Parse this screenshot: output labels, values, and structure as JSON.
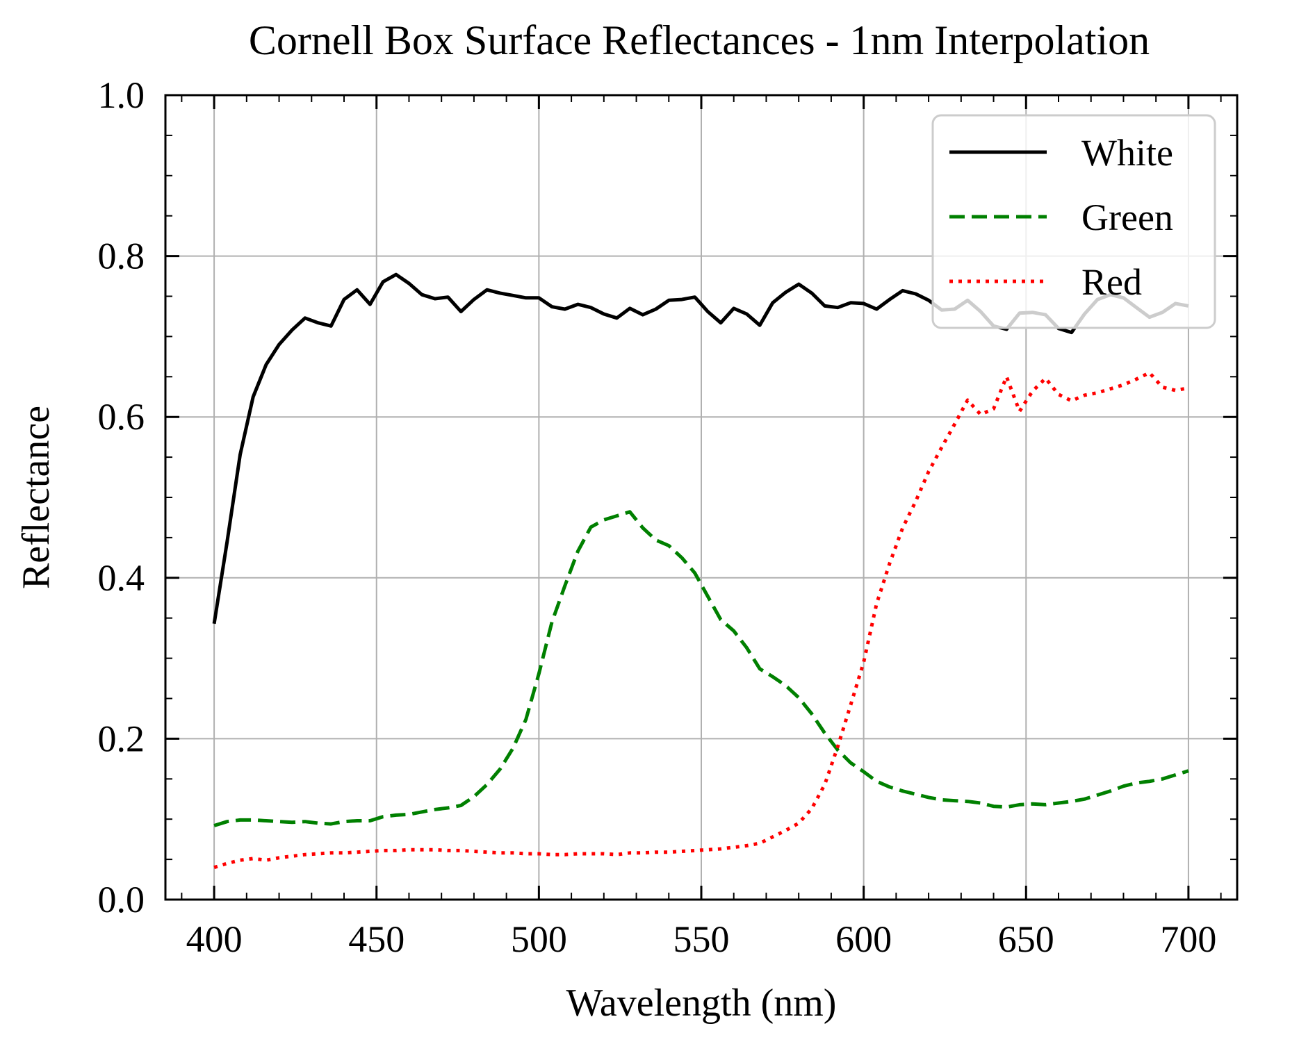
{
  "chart_data": {
    "type": "line",
    "title": "Cornell Box Surface Reflectances - 1nm Interpolation",
    "xlabel": "Wavelength (nm)",
    "ylabel": "Reflectance",
    "xlim": [
      385,
      715
    ],
    "ylim": [
      0.0,
      1.0
    ],
    "xticks": [
      400,
      450,
      500,
      550,
      600,
      650,
      700
    ],
    "xtick_labels": [
      "400",
      "450",
      "500",
      "550",
      "600",
      "650",
      "700"
    ],
    "yticks": [
      0.0,
      0.2,
      0.4,
      0.6,
      0.8,
      1.0
    ],
    "ytick_labels": [
      "0.0",
      "0.2",
      "0.4",
      "0.6",
      "0.8",
      "1.0"
    ],
    "grid": true,
    "legend_position": "top-right",
    "series": [
      {
        "name": "White",
        "color": "#000000",
        "style": "solid",
        "x": [
          400,
          404,
          408,
          412,
          416,
          420,
          424,
          428,
          432,
          436,
          440,
          444,
          448,
          452,
          456,
          460,
          464,
          468,
          472,
          476,
          480,
          484,
          488,
          492,
          496,
          500,
          504,
          508,
          512,
          516,
          520,
          524,
          528,
          532,
          536,
          540,
          544,
          548,
          552,
          556,
          560,
          564,
          568,
          572,
          576,
          580,
          584,
          588,
          592,
          596,
          600,
          604,
          608,
          612,
          616,
          620,
          624,
          628,
          632,
          636,
          640,
          644,
          648,
          652,
          656,
          660,
          664,
          668,
          672,
          676,
          680,
          684,
          688,
          692,
          696,
          700
        ],
        "y": [
          0.343,
          0.445,
          0.553,
          0.625,
          0.665,
          0.69,
          0.708,
          0.723,
          0.717,
          0.713,
          0.746,
          0.758,
          0.74,
          0.768,
          0.777,
          0.766,
          0.752,
          0.747,
          0.749,
          0.731,
          0.746,
          0.758,
          0.754,
          0.751,
          0.748,
          0.748,
          0.737,
          0.734,
          0.74,
          0.736,
          0.728,
          0.723,
          0.735,
          0.727,
          0.734,
          0.745,
          0.746,
          0.749,
          0.731,
          0.717,
          0.735,
          0.728,
          0.714,
          0.742,
          0.755,
          0.765,
          0.754,
          0.738,
          0.736,
          0.742,
          0.741,
          0.734,
          0.746,
          0.757,
          0.753,
          0.745,
          0.733,
          0.734,
          0.745,
          0.731,
          0.713,
          0.709,
          0.729,
          0.73,
          0.727,
          0.71,
          0.705,
          0.728,
          0.746,
          0.752,
          0.748,
          0.736,
          0.724,
          0.73,
          0.741,
          0.738
        ]
      },
      {
        "name": "Green",
        "color": "#008000",
        "style": "dashed",
        "x": [
          400,
          404,
          408,
          412,
          416,
          420,
          424,
          428,
          432,
          436,
          440,
          444,
          448,
          452,
          456,
          460,
          464,
          468,
          472,
          476,
          480,
          484,
          488,
          492,
          496,
          500,
          504,
          508,
          512,
          516,
          520,
          524,
          528,
          532,
          536,
          540,
          544,
          548,
          552,
          556,
          560,
          564,
          568,
          572,
          576,
          580,
          584,
          588,
          592,
          596,
          600,
          604,
          608,
          612,
          616,
          620,
          624,
          628,
          632,
          636,
          640,
          644,
          648,
          652,
          656,
          660,
          664,
          668,
          672,
          676,
          680,
          684,
          688,
          692,
          696,
          700
        ],
        "y": [
          0.092,
          0.097,
          0.099,
          0.099,
          0.098,
          0.097,
          0.096,
          0.097,
          0.095,
          0.094,
          0.097,
          0.098,
          0.098,
          0.103,
          0.105,
          0.106,
          0.109,
          0.112,
          0.114,
          0.117,
          0.128,
          0.143,
          0.162,
          0.188,
          0.224,
          0.281,
          0.345,
          0.39,
          0.433,
          0.463,
          0.472,
          0.477,
          0.482,
          0.462,
          0.447,
          0.44,
          0.425,
          0.406,
          0.377,
          0.348,
          0.334,
          0.313,
          0.287,
          0.277,
          0.266,
          0.251,
          0.231,
          0.207,
          0.186,
          0.17,
          0.159,
          0.147,
          0.14,
          0.135,
          0.131,
          0.127,
          0.124,
          0.123,
          0.122,
          0.12,
          0.116,
          0.115,
          0.118,
          0.119,
          0.118,
          0.12,
          0.122,
          0.125,
          0.13,
          0.135,
          0.141,
          0.145,
          0.147,
          0.15,
          0.155,
          0.16
        ]
      },
      {
        "name": "Red",
        "color": "#ff0000",
        "style": "dotted",
        "x": [
          400,
          404,
          408,
          412,
          416,
          420,
          424,
          428,
          432,
          436,
          440,
          444,
          448,
          452,
          456,
          460,
          464,
          468,
          472,
          476,
          480,
          484,
          488,
          492,
          496,
          500,
          504,
          508,
          512,
          516,
          520,
          524,
          528,
          532,
          536,
          540,
          544,
          548,
          552,
          556,
          560,
          564,
          568,
          572,
          576,
          580,
          584,
          588,
          592,
          596,
          600,
          604,
          608,
          612,
          616,
          620,
          624,
          628,
          632,
          636,
          640,
          644,
          648,
          652,
          656,
          660,
          664,
          668,
          672,
          676,
          680,
          684,
          688,
          692,
          696,
          700
        ],
        "y": [
          0.04,
          0.045,
          0.049,
          0.051,
          0.049,
          0.052,
          0.054,
          0.056,
          0.057,
          0.058,
          0.058,
          0.059,
          0.06,
          0.061,
          0.061,
          0.062,
          0.062,
          0.062,
          0.061,
          0.061,
          0.06,
          0.059,
          0.058,
          0.058,
          0.057,
          0.057,
          0.056,
          0.056,
          0.057,
          0.057,
          0.057,
          0.056,
          0.058,
          0.058,
          0.059,
          0.059,
          0.06,
          0.061,
          0.062,
          0.063,
          0.065,
          0.067,
          0.07,
          0.078,
          0.086,
          0.095,
          0.113,
          0.143,
          0.19,
          0.242,
          0.295,
          0.368,
          0.418,
          0.462,
          0.495,
          0.532,
          0.562,
          0.591,
          0.621,
          0.603,
          0.61,
          0.65,
          0.607,
          0.632,
          0.648,
          0.628,
          0.62,
          0.627,
          0.63,
          0.635,
          0.64,
          0.647,
          0.655,
          0.637,
          0.633,
          0.636
        ]
      }
    ]
  }
}
